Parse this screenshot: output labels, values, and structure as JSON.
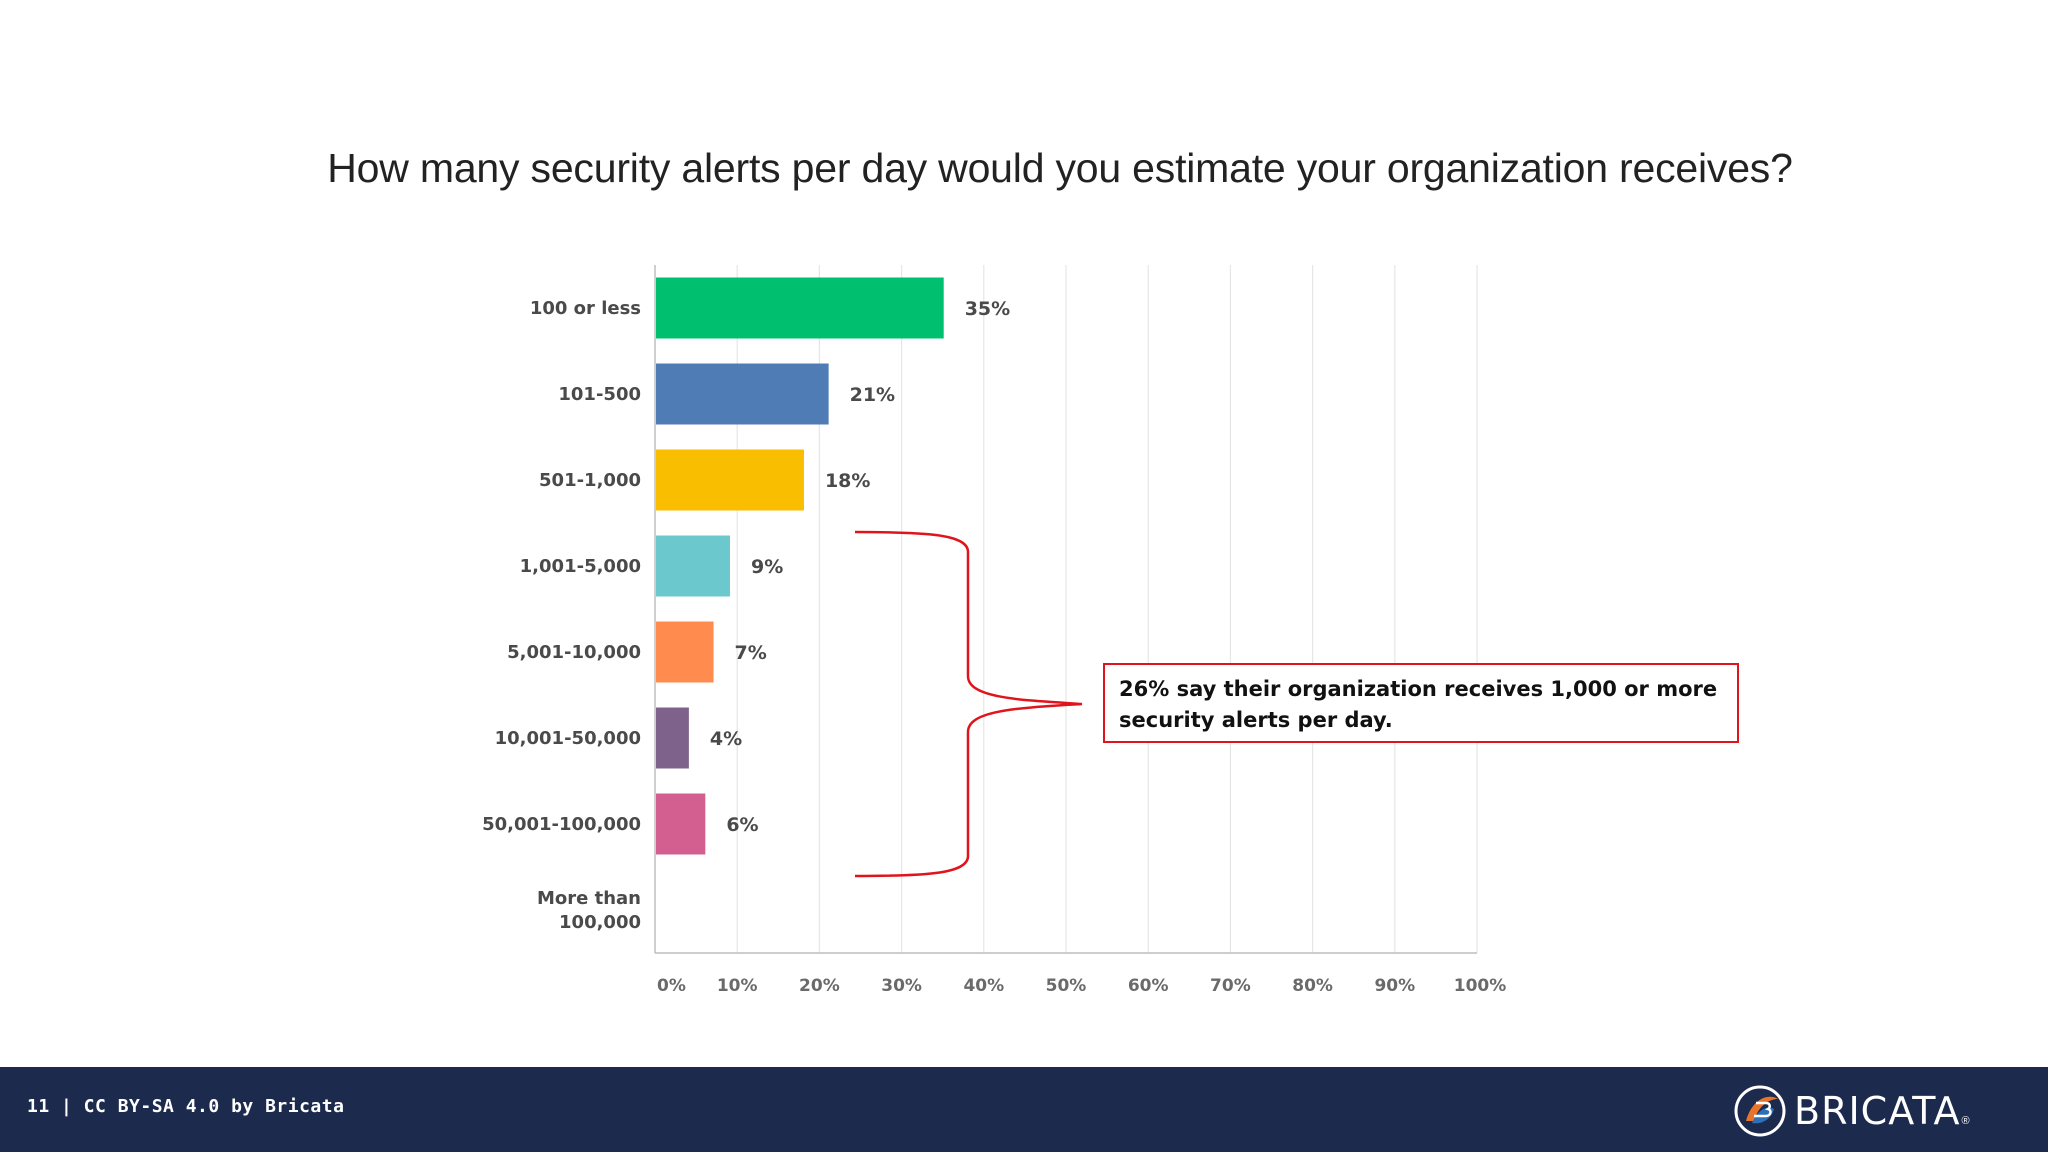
{
  "slide": {
    "footer_text": "11 | CC BY-SA 4.0 by Bricata",
    "logo_text": "BRICATA",
    "logo_reg": "®",
    "callout_text": "26% say their organization receives 1,000 or more security alerts per day."
  },
  "colors": {
    "background": "#ffffff",
    "footer": "#1c2a4e",
    "bracket": "#e0141c",
    "grid": "#e6e6e6",
    "axis": "#bdbdbd",
    "label_text": "#4a4a4a"
  },
  "chart_data": {
    "type": "bar",
    "orientation": "horizontal",
    "title": "How many security alerts per day would you estimate your organization receives?",
    "categories": [
      "100 or less",
      "101-500",
      "501-1,000",
      "1,001-5,000",
      "5,001-10,000",
      "10,001-50,000",
      "50,001-100,000",
      "More than 100,000"
    ],
    "category_lines": [
      [
        "100 or less"
      ],
      [
        "101-500"
      ],
      [
        "501-1,000"
      ],
      [
        "1,001-5,000"
      ],
      [
        "5,001-10,000"
      ],
      [
        "10,001-50,000"
      ],
      [
        "50,001-100,000"
      ],
      [
        "More than",
        "100,000"
      ]
    ],
    "values": [
      35,
      21,
      18,
      9,
      7,
      4,
      6,
      0
    ],
    "value_labels": [
      "35%",
      "21%",
      "18%",
      "9%",
      "7%",
      "4%",
      "6%",
      ""
    ],
    "bar_colors": [
      "#00bf6f",
      "#507cb6",
      "#f9be00",
      "#6bc8cd",
      "#ff8b4f",
      "#7f628b",
      "#d25f90",
      "#cccccc"
    ],
    "xlim": [
      0,
      100
    ],
    "xticks": [
      0,
      10,
      20,
      30,
      40,
      50,
      60,
      70,
      80,
      90,
      100
    ],
    "xtick_labels": [
      "0%",
      "10%",
      "20%",
      "30%",
      "40%",
      "50%",
      "60%",
      "70%",
      "80%",
      "90%",
      "100%"
    ],
    "grid": true,
    "xlabel": "",
    "ylabel": ""
  }
}
